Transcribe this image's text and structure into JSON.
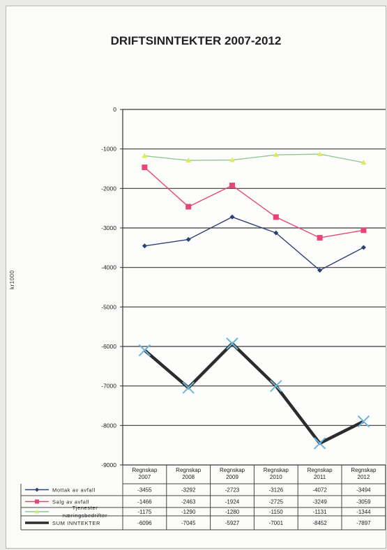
{
  "chart_data": {
    "type": "line",
    "title": "DRIFTSINNTEKTER 2007-2012",
    "ylabel": "kr1000",
    "xlabel": "",
    "ylim": [
      -9000,
      0
    ],
    "yticks": [
      0,
      -1000,
      -2000,
      -3000,
      -4000,
      -5000,
      -6000,
      -7000,
      -8000,
      -9000
    ],
    "grid": true,
    "legend": "table-below",
    "categories": [
      "Regnskap\n2007",
      "Regnskap\n2008",
      "Regnskap\n2009",
      "Regnskap\n2010",
      "Regnskap\n2011",
      "Regnskap\n2012"
    ],
    "series": [
      {
        "name": "Mottak av avfall",
        "values": [
          -3455,
          -3292,
          -2723,
          -3126,
          -4072,
          -3494
        ],
        "color": "#2e3f74",
        "marker": "diamond"
      },
      {
        "name": "Salg av avfall",
        "values": [
          -1466,
          -2463,
          -1924,
          -2725,
          -3249,
          -3059
        ],
        "color": "#e8457a",
        "marker": "square"
      },
      {
        "name": "Tjenester\nnæringsbedrifter",
        "values": [
          -1175,
          -1290,
          -1280,
          -1150,
          -1131,
          -1344
        ],
        "color": "#8ec98e",
        "marker": "triangle"
      },
      {
        "name": "SUM INNTEKTER",
        "values": [
          -6096,
          -7045,
          -5927,
          -7001,
          -8452,
          -7897
        ],
        "color": "#2c2c2c",
        "marker": "x"
      }
    ]
  }
}
